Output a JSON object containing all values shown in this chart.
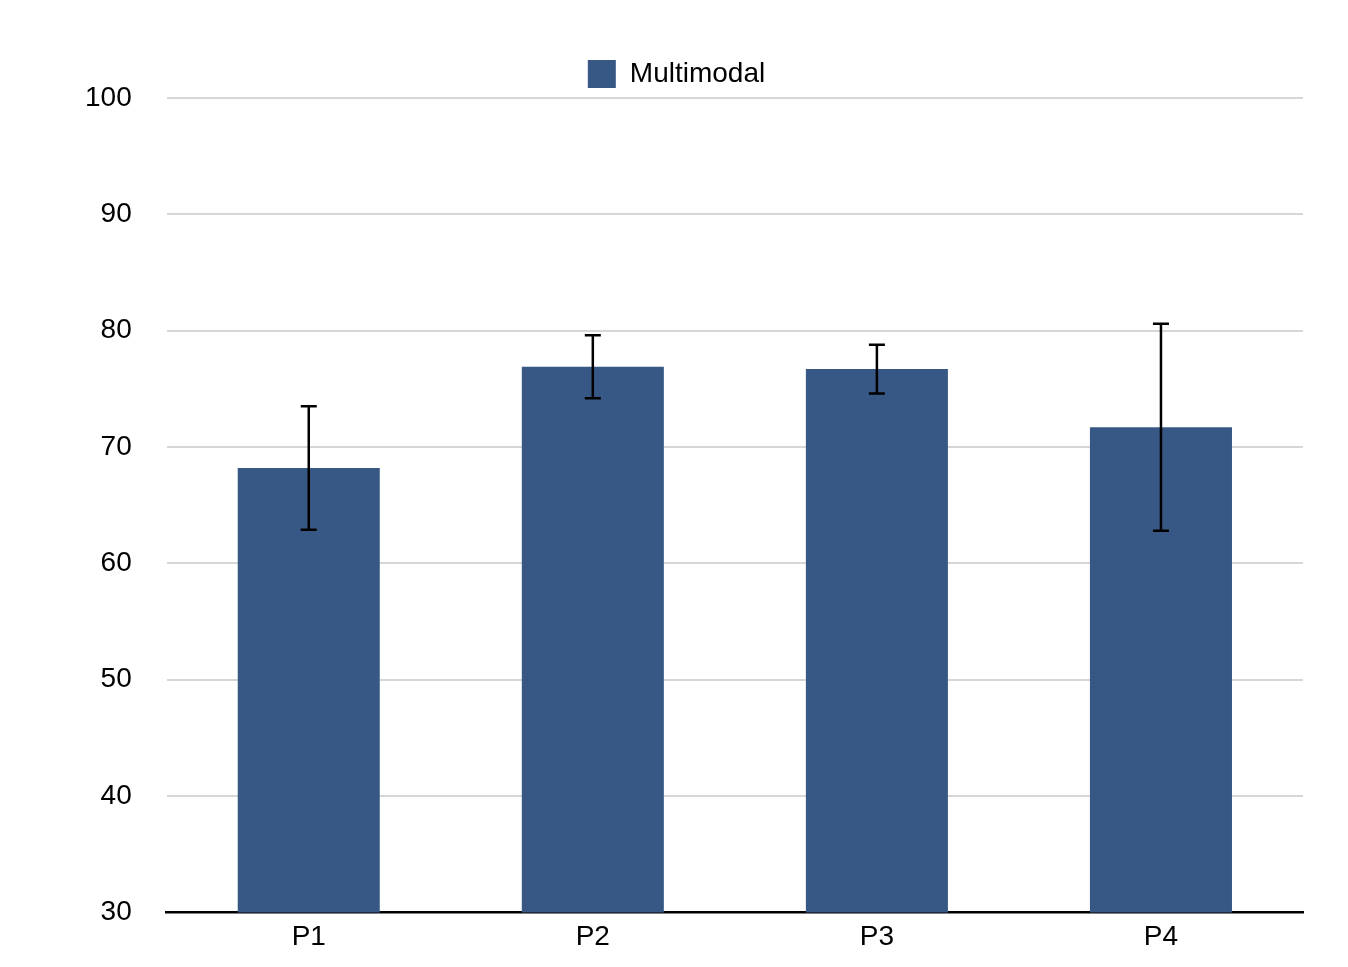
{
  "chart_data": {
    "type": "bar",
    "categories": [
      "P1",
      "P2",
      "P3",
      "P4"
    ],
    "series": [
      {
        "name": "Multimodal",
        "color": "#375785",
        "values": [
          68.2,
          76.9,
          76.7,
          71.7
        ],
        "errors": [
          5.3,
          2.7,
          2.1,
          8.9
        ]
      }
    ],
    "ylim": [
      30,
      100
    ],
    "yticks": [
      30,
      40,
      50,
      60,
      70,
      80,
      90,
      100
    ],
    "grid": "y",
    "legend": "top"
  }
}
